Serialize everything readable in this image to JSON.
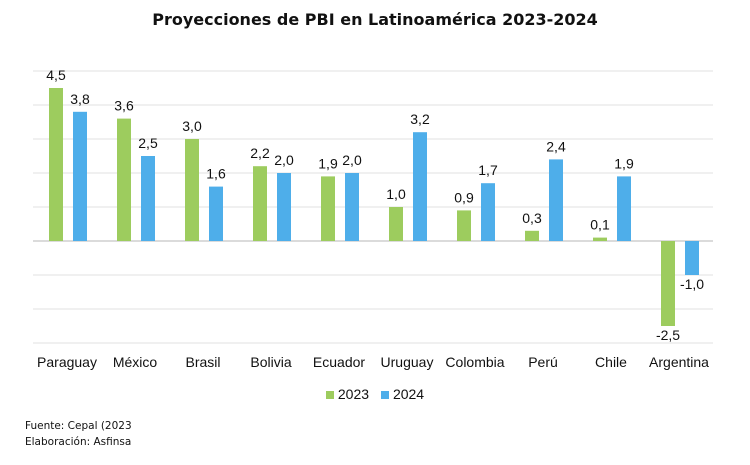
{
  "chart_data": {
    "type": "bar",
    "title": "Proyecciones de PBI en Latinoamérica 2023-2024",
    "categories": [
      "Paraguay",
      "México",
      "Brasil",
      "Bolivia",
      "Ecuador",
      "Uruguay",
      "Colombia",
      "Perú",
      "Chile",
      "Argentina"
    ],
    "series": [
      {
        "name": "2023",
        "color": "#9dcc5e",
        "values": [
          4.5,
          3.6,
          3.0,
          2.2,
          1.9,
          1.0,
          0.9,
          0.3,
          0.1,
          -2.5
        ],
        "labels": [
          "4,5",
          "3,6",
          "3,0",
          "2,2",
          "1,9",
          "1,0",
          "0,9",
          "0,3",
          "0,1",
          "-2,5"
        ]
      },
      {
        "name": "2024",
        "color": "#4eaeea",
        "values": [
          3.8,
          2.5,
          1.6,
          2.0,
          2.0,
          3.2,
          1.7,
          2.4,
          1.9,
          -1.0
        ],
        "labels": [
          "3,8",
          "2,5",
          "1,6",
          "2,0",
          "2,0",
          "3,2",
          "1,7",
          "2,4",
          "1,9",
          "-1,0"
        ]
      }
    ],
    "ylim": [
      -3,
      5
    ],
    "grid": true,
    "y_tick_labels_shown": false,
    "legend_position": "bottom"
  },
  "footer": {
    "source": "Fuente: Cepal (2023",
    "credit": "Elaboración: Asfinsa"
  }
}
